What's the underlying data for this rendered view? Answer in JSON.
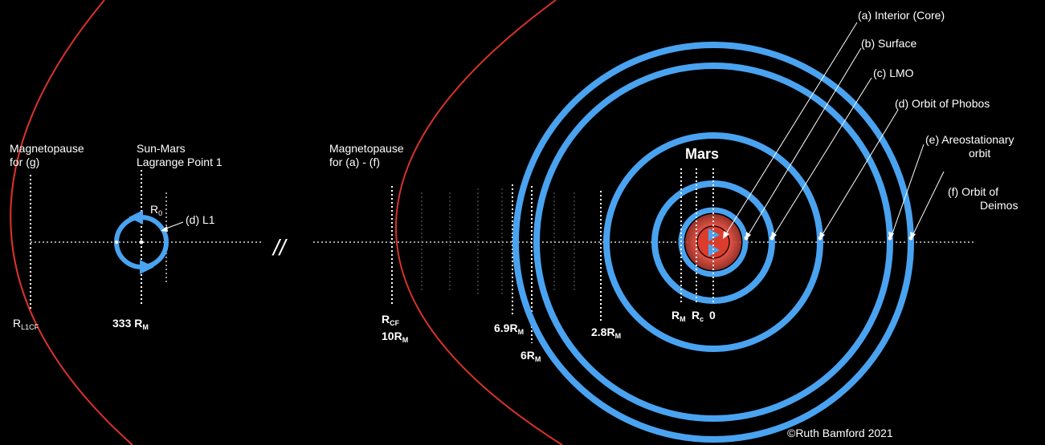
{
  "colors": {
    "background": "#000000",
    "orbit": "#4aa3f0",
    "magnetopause": "#d8322a",
    "mars_core": "#dc3c2c",
    "mars_glow": "#ff7a6a",
    "axis": "#ffffff"
  },
  "left": {
    "magnetopause_g": {
      "line1": "Magnetopause",
      "line2": "for (g)"
    },
    "lagrange": {
      "line1": "Sun-Mars",
      "line2": "Lagrange Point 1"
    },
    "r0": {
      "main": "R",
      "sub": "0"
    },
    "l1_label": "(d) L1",
    "r_l1cf": {
      "main": "R",
      "sub": "L1CF"
    },
    "r333": {
      "main": "333 R",
      "sub": "M"
    }
  },
  "break_symbol": "//",
  "middle": {
    "magnetopause_af": {
      "line1": "Magnetopause",
      "line2": "for (a) - (f)"
    },
    "rcf": {
      "main": "R",
      "sub": "CF"
    },
    "r10": {
      "main": "10R",
      "sub": "M"
    },
    "r69": {
      "main": "6.9R",
      "sub": "M"
    },
    "r6": {
      "main": "6R",
      "sub": "M"
    },
    "r28": {
      "main": "2.8R",
      "sub": "M"
    }
  },
  "mars": {
    "title": "Mars",
    "rm": {
      "main": "R",
      "sub": "M"
    },
    "rc": {
      "main": "R",
      "sub": "c"
    },
    "zero": "0"
  },
  "annotations": {
    "a": "(a) Interior (Core)",
    "b": "(b) Surface",
    "c": "(c) LMO",
    "d": "(d) Orbit of Phobos",
    "e1": "(e) Areostationary",
    "e2": "orbit",
    "f1": "(f) Orbit of",
    "f2": "Deimos"
  },
  "credit": "©Ruth Bamford 2021"
}
